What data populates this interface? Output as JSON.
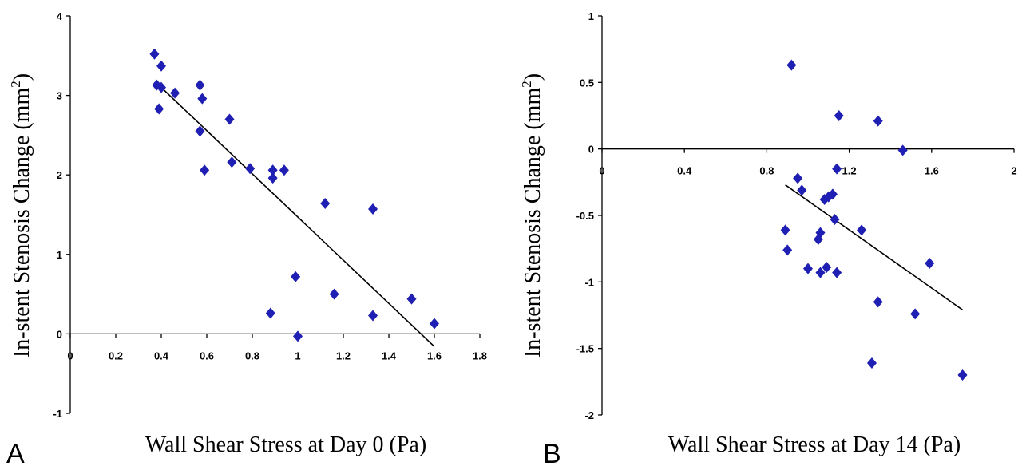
{
  "chart_data": [
    {
      "type": "scatter",
      "panel_label": "A",
      "xlabel": "Wall Shear Stress at Day 0 (Pa)",
      "ylabel_main": "In-stent Stenosis Change (mm",
      "ylabel_sup": "2",
      "ylabel_end": ")",
      "xlim": [
        0,
        1.8
      ],
      "ylim": [
        -1,
        4
      ],
      "xticks": [
        0,
        0.2,
        0.4,
        0.6,
        0.8,
        1,
        1.2,
        1.4,
        1.6,
        1.8
      ],
      "xtick_labels": [
        "0",
        "0.2",
        "0.4",
        "0.6",
        "0.8",
        "1",
        "1.2",
        "1.4",
        "1.6",
        "1.8"
      ],
      "yticks": [
        -1,
        0,
        1,
        2,
        3,
        4
      ],
      "ytick_labels": [
        "-1",
        "0",
        "1",
        "2",
        "3",
        "4"
      ],
      "marker_color": "#1f1fb4",
      "points": [
        {
          "x": 0.37,
          "y": 3.52
        },
        {
          "x": 0.4,
          "y": 3.37
        },
        {
          "x": 0.38,
          "y": 3.13
        },
        {
          "x": 0.4,
          "y": 3.1
        },
        {
          "x": 0.39,
          "y": 2.83
        },
        {
          "x": 0.46,
          "y": 3.03
        },
        {
          "x": 0.57,
          "y": 3.13
        },
        {
          "x": 0.58,
          "y": 2.96
        },
        {
          "x": 0.57,
          "y": 2.55
        },
        {
          "x": 0.59,
          "y": 2.06
        },
        {
          "x": 0.7,
          "y": 2.7
        },
        {
          "x": 0.71,
          "y": 2.16
        },
        {
          "x": 0.79,
          "y": 2.08
        },
        {
          "x": 0.89,
          "y": 2.06
        },
        {
          "x": 0.89,
          "y": 1.96
        },
        {
          "x": 0.94,
          "y": 2.06
        },
        {
          "x": 1.12,
          "y": 1.64
        },
        {
          "x": 1.33,
          "y": 1.57
        },
        {
          "x": 0.99,
          "y": 0.72
        },
        {
          "x": 1.16,
          "y": 0.5
        },
        {
          "x": 0.88,
          "y": 0.26
        },
        {
          "x": 1.0,
          "y": -0.03
        },
        {
          "x": 1.33,
          "y": 0.23
        },
        {
          "x": 1.5,
          "y": 0.44
        },
        {
          "x": 1.6,
          "y": 0.13
        }
      ],
      "trendline": [
        {
          "x": 0.4,
          "y": 3.1
        },
        {
          "x": 1.6,
          "y": -0.16
        }
      ]
    },
    {
      "type": "scatter",
      "panel_label": "B",
      "xlabel": "Wall Shear Stress at Day 14 (Pa)",
      "ylabel_main": "In-stent Stenosis Change (mm",
      "ylabel_sup": "2",
      "ylabel_end": ")",
      "xlim": [
        0,
        2
      ],
      "ylim": [
        -2,
        1
      ],
      "xticks": [
        0,
        0.4,
        0.8,
        1.2,
        1.6,
        2
      ],
      "xtick_labels": [
        "0",
        "0.4",
        "0.8",
        "1.2",
        "1.6",
        "2"
      ],
      "yticks": [
        -2,
        -1.5,
        -1,
        -0.5,
        0,
        0.5,
        1
      ],
      "ytick_labels": [
        "-2",
        "-1.5",
        "-1",
        "-0.5",
        "0",
        "0.5",
        "1"
      ],
      "marker_color": "#1f1fb4",
      "points": [
        {
          "x": 0.92,
          "y": 0.63
        },
        {
          "x": 1.15,
          "y": 0.25
        },
        {
          "x": 1.34,
          "y": 0.21
        },
        {
          "x": 1.46,
          "y": -0.01
        },
        {
          "x": 1.14,
          "y": -0.15
        },
        {
          "x": 0.95,
          "y": -0.22
        },
        {
          "x": 0.97,
          "y": -0.31
        },
        {
          "x": 1.12,
          "y": -0.34
        },
        {
          "x": 1.1,
          "y": -0.36
        },
        {
          "x": 1.08,
          "y": -0.38
        },
        {
          "x": 1.13,
          "y": -0.53
        },
        {
          "x": 1.26,
          "y": -0.61
        },
        {
          "x": 0.89,
          "y": -0.61
        },
        {
          "x": 1.06,
          "y": -0.63
        },
        {
          "x": 1.05,
          "y": -0.68
        },
        {
          "x": 0.9,
          "y": -0.76
        },
        {
          "x": 1.59,
          "y": -0.86
        },
        {
          "x": 1.0,
          "y": -0.9
        },
        {
          "x": 1.09,
          "y": -0.89
        },
        {
          "x": 1.06,
          "y": -0.93
        },
        {
          "x": 1.14,
          "y": -0.93
        },
        {
          "x": 1.34,
          "y": -1.15
        },
        {
          "x": 1.52,
          "y": -1.24
        },
        {
          "x": 1.31,
          "y": -1.61
        },
        {
          "x": 1.75,
          "y": -1.7
        }
      ],
      "trendline": [
        {
          "x": 0.89,
          "y": -0.27
        },
        {
          "x": 1.75,
          "y": -1.21
        }
      ]
    }
  ]
}
